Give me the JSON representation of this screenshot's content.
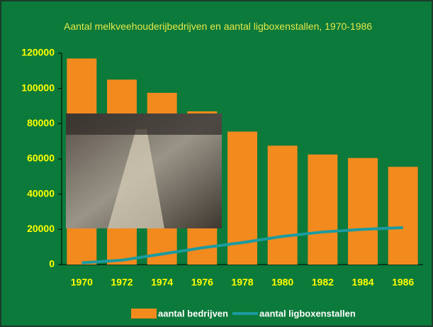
{
  "chart_data": {
    "type": "bar",
    "title": "Aantal melkveehouderijbedrijven en aantal ligboxenstallen, 1970-1986",
    "categories": [
      "1970",
      "1972",
      "1974",
      "1976",
      "1978",
      "1980",
      "1982",
      "1984",
      "1986"
    ],
    "series": [
      {
        "name": "aantal bedrijven",
        "type": "bar",
        "color": "#f28a1e",
        "values": [
          117000,
          105000,
          97500,
          87000,
          75500,
          67500,
          62500,
          60500,
          55500
        ]
      },
      {
        "name": "aantal ligboxenstallen",
        "type": "line",
        "color": "#1a9ba0",
        "values": [
          1000,
          2500,
          6000,
          9500,
          12500,
          16000,
          18500,
          20000,
          21000
        ]
      }
    ],
    "ylim": [
      0,
      120000
    ],
    "yticks": [
      0,
      20000,
      40000,
      60000,
      80000,
      100000,
      120000
    ]
  }
}
